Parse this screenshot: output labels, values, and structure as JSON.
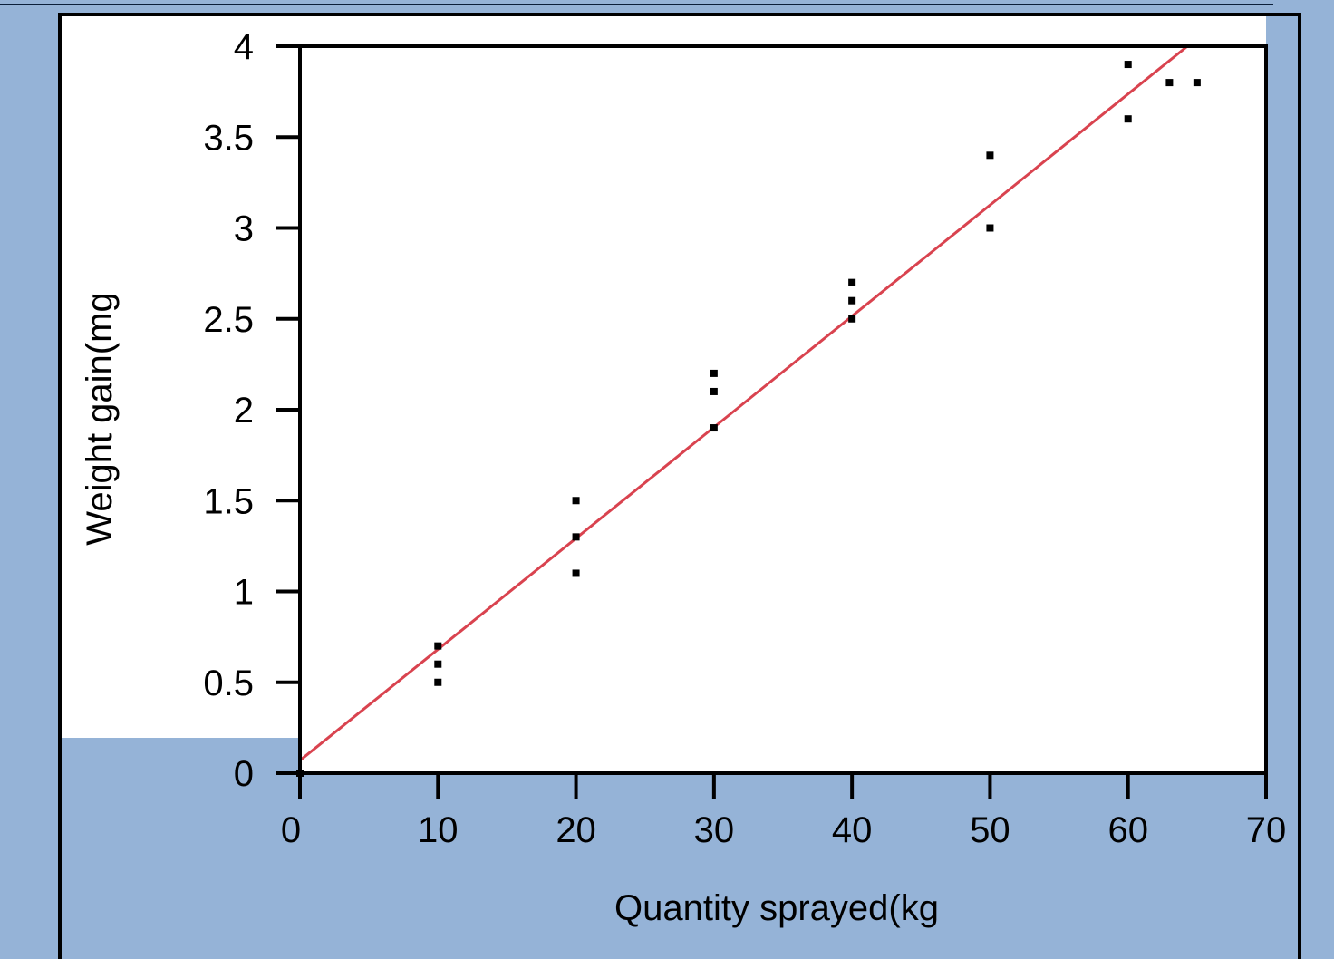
{
  "chart_data": {
    "type": "scatter",
    "title": "",
    "xlabel": "Quantity sprayed(kg",
    "ylabel": "Weight gain(mg",
    "xlim": [
      0,
      70
    ],
    "ylim": [
      0,
      4
    ],
    "xticks": [
      "0",
      "10",
      "20",
      "30",
      "40",
      "50",
      "60",
      "70"
    ],
    "yticks": [
      "0",
      "0.5",
      "1",
      "1.5",
      "2",
      "2.5",
      "3",
      "3.5",
      "4"
    ],
    "grid": false,
    "legend": "none",
    "points": [
      {
        "x": 0,
        "y": 0
      },
      {
        "x": 10,
        "y": 0.5
      },
      {
        "x": 10,
        "y": 0.6
      },
      {
        "x": 10,
        "y": 0.7
      },
      {
        "x": 20,
        "y": 1.1
      },
      {
        "x": 20,
        "y": 1.3
      },
      {
        "x": 20,
        "y": 1.5
      },
      {
        "x": 30,
        "y": 1.9
      },
      {
        "x": 30,
        "y": 2.1
      },
      {
        "x": 30,
        "y": 2.2
      },
      {
        "x": 40,
        "y": 2.5
      },
      {
        "x": 40,
        "y": 2.6
      },
      {
        "x": 40,
        "y": 2.7
      },
      {
        "x": 50,
        "y": 3.0
      },
      {
        "x": 50,
        "y": 3.4
      },
      {
        "x": 60,
        "y": 3.6
      },
      {
        "x": 60,
        "y": 3.9
      },
      {
        "x": 63,
        "y": 3.8
      },
      {
        "x": 65,
        "y": 3.8
      }
    ],
    "fit_line": {
      "x": [
        0,
        64.3
      ],
      "y": [
        0.07,
        4.0
      ],
      "color": "#d9434f"
    },
    "marker_color": "#000000",
    "frame_color": "#000000",
    "plot_background": "#ffffff",
    "page_background": "#95b3d7"
  }
}
